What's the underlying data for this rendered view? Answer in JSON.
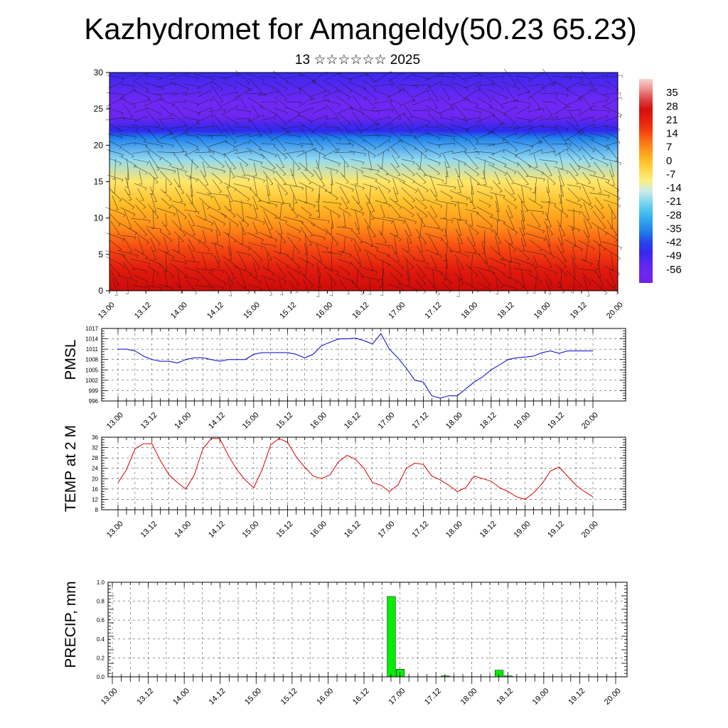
{
  "title": "Kazhydromet for Amangeldy(50.23 65.23)",
  "subtitle": "13 ☆☆☆☆☆☆ 2025",
  "time_labels": [
    "13.00",
    "13.12",
    "14.00",
    "14.12",
    "15.00",
    "15.12",
    "16.00",
    "16.12",
    "17.00",
    "17.12",
    "18.00",
    "18.12",
    "19.00",
    "19.12",
    "20.00"
  ],
  "colors": {
    "pmsl_line": "#0000cc",
    "temp_line": "#dd0000",
    "precip_bar": "#00ee00",
    "grid": "#555555"
  },
  "chart_data": [
    {
      "type": "heatmap",
      "title": "",
      "xlabel": "",
      "ylabel": "",
      "ylim": [
        0,
        30
      ],
      "y_ticks": [
        "0",
        "5",
        "10",
        "15",
        "20",
        "25",
        "30"
      ],
      "colorbar_labels": [
        "35",
        "28",
        "21",
        "14",
        "7",
        "0",
        "-7",
        "-14",
        "-21",
        "-28",
        "-35",
        "-42",
        "-49",
        "-56"
      ],
      "colorbar_range": [
        -63,
        42
      ],
      "note_levels_to_temp": {
        "levels": [
          0,
          3,
          6,
          9,
          12,
          15,
          18,
          21,
          22,
          24,
          26,
          28,
          30
        ],
        "temps": [
          28,
          22,
          14,
          6,
          0,
          -8,
          -20,
          -36,
          -46,
          -58,
          -56,
          -52,
          -48
        ]
      }
    },
    {
      "type": "line",
      "ylabel": "PMSL",
      "yticks": [
        "1017",
        "1014",
        "1011",
        "1008",
        "1005",
        "1002",
        "999",
        "996"
      ],
      "ylim": [
        996,
        1017
      ],
      "x": [
        "13.00",
        "13.03",
        "13.06",
        "13.09",
        "13.12",
        "13.15",
        "13.18",
        "13.21",
        "14.00",
        "14.03",
        "14.06",
        "14.09",
        "14.12",
        "14.15",
        "14.18",
        "14.21",
        "15.00",
        "15.03",
        "15.06",
        "15.09",
        "15.12",
        "15.15",
        "15.18",
        "15.21",
        "16.00",
        "16.03",
        "16.06",
        "16.09",
        "16.12",
        "16.15",
        "16.18",
        "16.21",
        "17.00",
        "17.03",
        "17.06",
        "17.09",
        "17.12",
        "17.15",
        "17.18",
        "17.21",
        "18.00",
        "18.03",
        "18.06",
        "18.09",
        "18.12",
        "18.15",
        "18.18",
        "18.21",
        "19.00",
        "19.03",
        "19.06",
        "19.09",
        "19.12",
        "19.15",
        "19.18",
        "19.21",
        "20.00"
      ],
      "series": [
        {
          "values": [
            1011,
            1011,
            1010.5,
            1009,
            1008,
            1007.5,
            1007.5,
            1007,
            1008,
            1008.5,
            1008.5,
            1008,
            1007.5,
            1008,
            1008,
            1008,
            1009.5,
            1010,
            1010,
            1010,
            1010,
            1009.5,
            1008.5,
            1009.5,
            1012,
            1013,
            1014,
            1014,
            1014.2,
            1013.5,
            1012.5,
            1015.5,
            1011,
            1008.5,
            1005.5,
            1002,
            1001.5,
            997.5,
            996.8,
            997.5,
            997.5,
            999.5,
            1001.5,
            1003,
            1005,
            1006.5,
            1008,
            1008.5,
            1008.7,
            1009,
            1010,
            1010.5,
            1009.8,
            1010.5,
            1010.5,
            1010.5,
            1010.5
          ]
        }
      ]
    },
    {
      "type": "line",
      "ylabel": "TEMP at 2 M",
      "yticks": [
        "36",
        "32",
        "28",
        "24",
        "20",
        "16",
        "12",
        "8"
      ],
      "ylim": [
        8,
        36
      ],
      "x": [
        "13.00",
        "13.03",
        "13.06",
        "13.09",
        "13.12",
        "13.15",
        "13.18",
        "13.21",
        "14.00",
        "14.03",
        "14.06",
        "14.09",
        "14.12",
        "14.15",
        "14.18",
        "14.21",
        "15.00",
        "15.03",
        "15.06",
        "15.09",
        "15.12",
        "15.15",
        "15.18",
        "15.21",
        "16.00",
        "16.03",
        "16.06",
        "16.09",
        "16.12",
        "16.15",
        "16.18",
        "16.21",
        "17.00",
        "17.03",
        "17.06",
        "17.09",
        "17.12",
        "17.15",
        "17.18",
        "17.21",
        "18.00",
        "18.03",
        "18.06",
        "18.09",
        "18.12",
        "18.15",
        "18.18",
        "18.21",
        "19.00",
        "19.03",
        "19.06",
        "19.09",
        "19.12",
        "19.15",
        "19.18",
        "19.21",
        "20.00"
      ],
      "series": [
        {
          "values": [
            18.5,
            23.5,
            31.5,
            33.5,
            33.5,
            27,
            21.5,
            18.5,
            16,
            21.5,
            31.5,
            35.5,
            35.5,
            29,
            23.5,
            19.5,
            16.5,
            23.5,
            33,
            35.5,
            34,
            28.5,
            24.5,
            21,
            20,
            21.5,
            26.5,
            29,
            27.5,
            24,
            18.5,
            17.5,
            15,
            17.5,
            24,
            26,
            25.5,
            21,
            19.5,
            17.5,
            15,
            16.5,
            21,
            20,
            19,
            16.5,
            15,
            13,
            12,
            14.5,
            18,
            23,
            24.5,
            21,
            17.5,
            15,
            13
          ]
        }
      ]
    },
    {
      "type": "bar",
      "ylabel": "PRECIP, mm",
      "yticks": [
        "1.0",
        "0.8",
        "0.6",
        "0.4",
        "0.2",
        "0.0"
      ],
      "ylim": [
        0,
        1.0
      ],
      "bars": [
        {
          "x": "16.21",
          "value": 0.85
        },
        {
          "x": "17.00",
          "value": 0.08
        },
        {
          "x": "17.15",
          "value": 0.01
        },
        {
          "x": "18.09",
          "value": 0.07
        },
        {
          "x": "18.12",
          "value": 0.01
        }
      ]
    }
  ]
}
